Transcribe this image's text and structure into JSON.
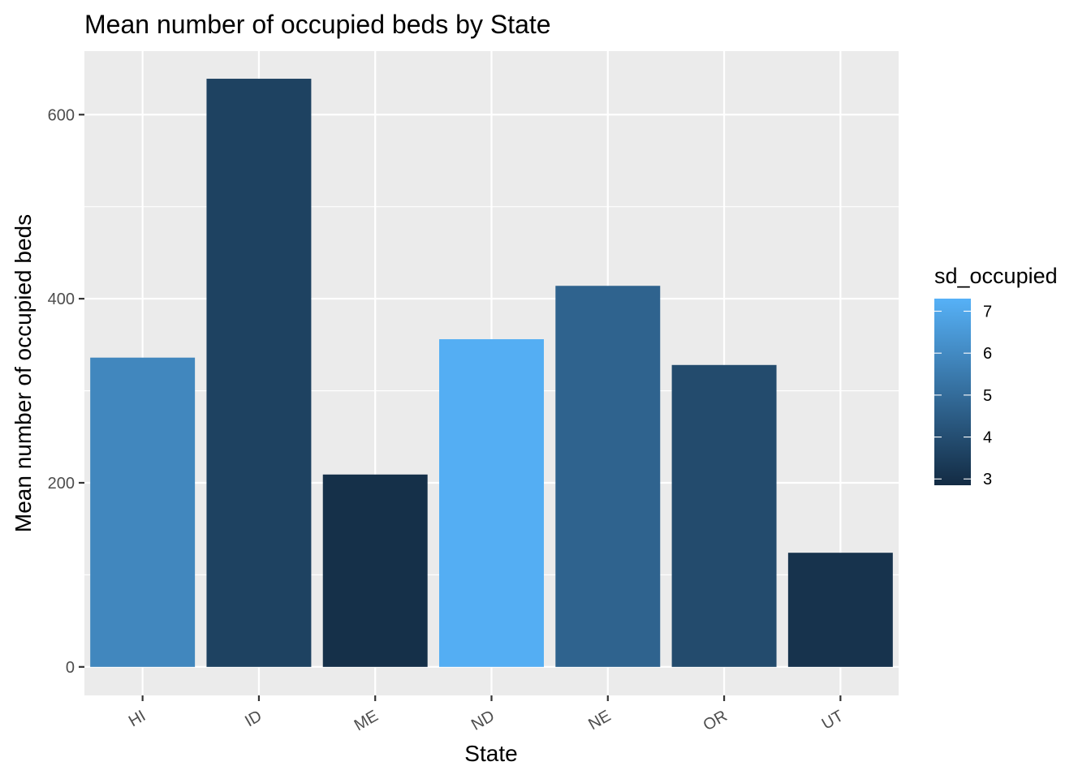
{
  "chart_data": {
    "type": "bar",
    "title": "Mean number of occupied beds by State",
    "xlabel": "State",
    "ylabel": "Mean number of occupied beds",
    "categories": [
      "HI",
      "ID",
      "ME",
      "ND",
      "NE",
      "OR",
      "UT"
    ],
    "values": [
      336,
      639,
      209,
      356,
      414,
      328,
      124
    ],
    "fill_values": [
      5.9,
      3.6,
      3.0,
      7.2,
      4.7,
      3.9,
      3.1
    ],
    "ylim": [
      -31,
      669
    ],
    "y_ticks": [
      0,
      200,
      400,
      600
    ],
    "y_tick_labels": [
      "0",
      "200",
      "400",
      "600"
    ],
    "grid": true,
    "x_tick_label_angle": -30,
    "legend": {
      "title": "sd_occupied",
      "placement": "right",
      "type": "colorbar",
      "range": [
        2.85,
        7.3
      ],
      "ticks": [
        3,
        4,
        5,
        6,
        7
      ],
      "tick_labels": [
        "3",
        "4",
        "5",
        "6",
        "7"
      ],
      "color_low": "#132B43",
      "color_high": "#56B1F7"
    },
    "colors": {
      "panel_background": "#EBEBEB",
      "grid_line": "#FFFFFF",
      "axis_tick": "#333333"
    }
  }
}
